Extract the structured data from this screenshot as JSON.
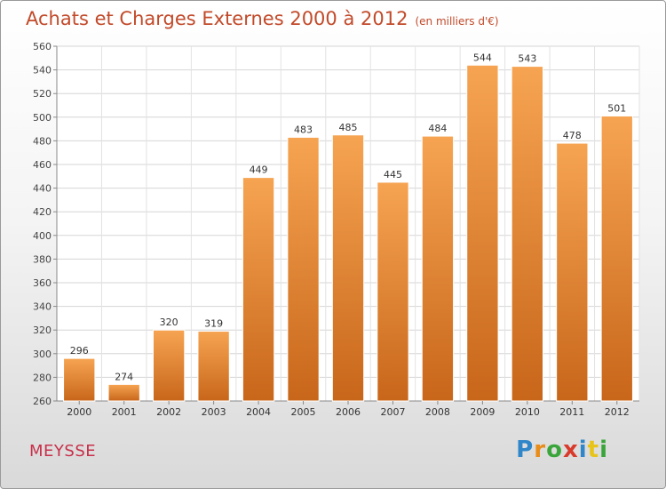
{
  "title": "Achats et Charges Externes 2000 à 2012",
  "subtitle": "(en milliers d'€)",
  "commune": "MEYSSE",
  "brand": {
    "letters": [
      {
        "char": "P",
        "color": "#2f86c8"
      },
      {
        "char": "r",
        "color": "#e88c1a"
      },
      {
        "char": "o",
        "color": "#3aa53a"
      },
      {
        "char": "x",
        "color": "#d83a2c"
      },
      {
        "char": "i",
        "color": "#2f86c8"
      },
      {
        "char": "t",
        "color": "#e8c41a"
      },
      {
        "char": "i",
        "color": "#3aa53a"
      }
    ]
  },
  "colors": {
    "title": "#c24a2a",
    "bar_light": "#f6a452",
    "bar_dark": "#c8661a"
  },
  "chart_data": {
    "type": "bar",
    "title": "Achats et Charges Externes 2000 à 2012",
    "subtitle": "(en milliers d'€)",
    "categories": [
      "2000",
      "2001",
      "2002",
      "2003",
      "2004",
      "2005",
      "2006",
      "2007",
      "2008",
      "2009",
      "2010",
      "2011",
      "2012"
    ],
    "values": [
      296,
      274,
      320,
      319,
      449,
      483,
      485,
      445,
      484,
      544,
      543,
      478,
      501
    ],
    "ylim": [
      260,
      560
    ],
    "yticks": [
      260,
      280,
      300,
      320,
      340,
      360,
      380,
      400,
      420,
      440,
      460,
      480,
      500,
      520,
      540,
      560
    ],
    "grid": true,
    "xlabel": "",
    "ylabel": ""
  }
}
